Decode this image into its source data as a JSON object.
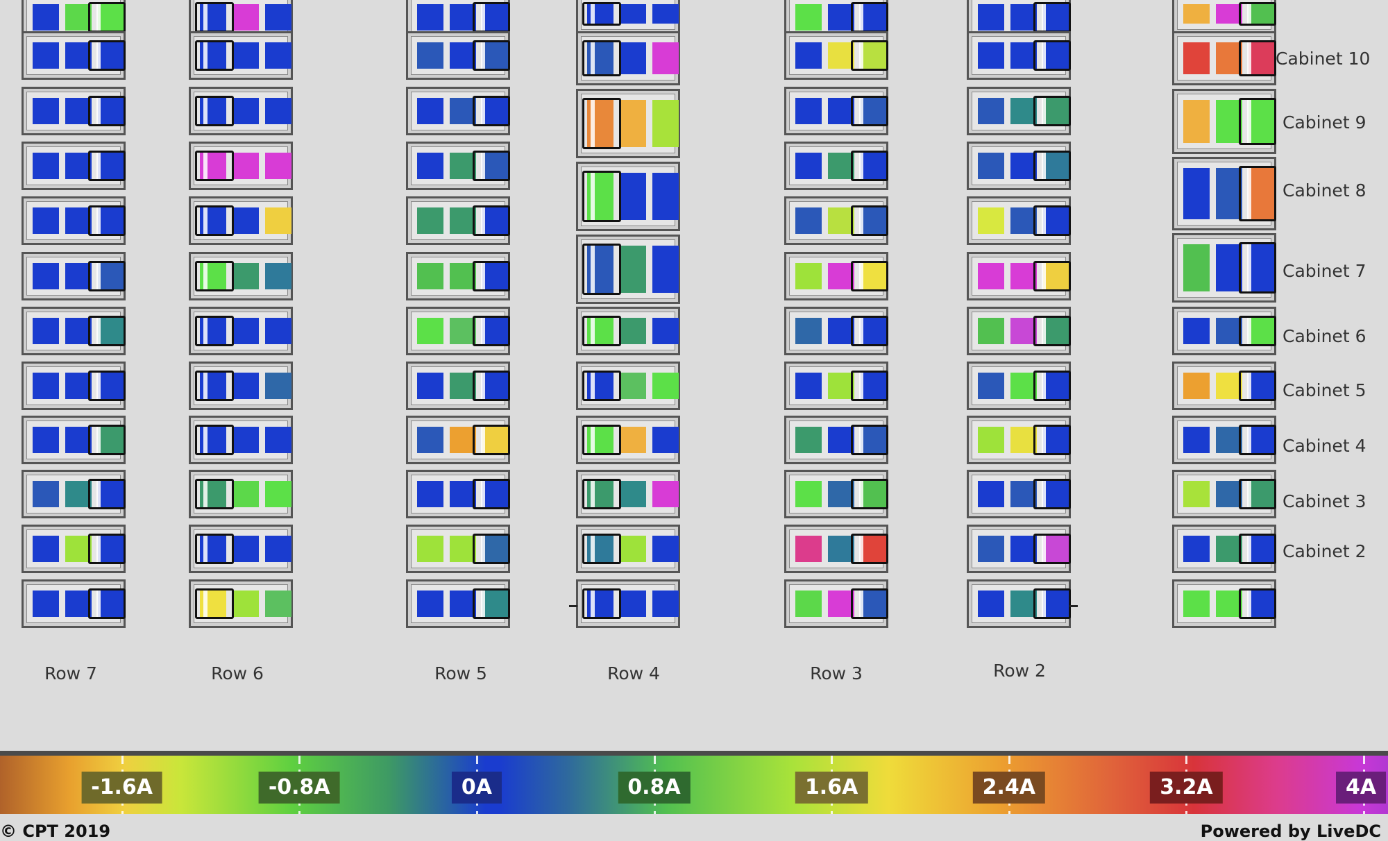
{
  "rows": [
    {
      "label": "Row 7",
      "cabinets": [
        [
          "#1a3ccf",
          "#5cd84a",
          "#5ce048"
        ],
        [
          "#1a3ccf",
          "#1a3ccf",
          "#1a3ccf"
        ],
        [
          "#1a3ccf",
          "#1a3ccf",
          "#1a3ccf"
        ],
        [
          "#1a3ccf",
          "#1a3ccf",
          "#1a3ccf"
        ],
        [
          "#1a3ccf",
          "#1a3ccf",
          "#1a3ccf"
        ],
        [
          "#1a3ccf",
          "#1a3ccf",
          "#2b58b8"
        ],
        [
          "#1a3ccf",
          "#1a3ccf",
          "#2f8a8a"
        ],
        [
          "#1a3ccf",
          "#1a3ccf",
          "#1a3ccf"
        ],
        [
          "#1a3ccf",
          "#1a3ccf",
          "#3c9a6c"
        ],
        [
          "#2b58b8",
          "#2f8a8a",
          "#1a3ccf"
        ],
        [
          "#1a3ccf",
          "#9ee23a",
          "#1a3ccf"
        ],
        [
          "#1a3ccf",
          "#1a3ccf",
          "#1a3ccf"
        ]
      ]
    },
    {
      "label": "Row 6",
      "cabinets": [
        [
          "#1a3ccf",
          "#d83cd6",
          "#1a3ccf"
        ],
        [
          "#1a3ccf",
          "#1a3ccf",
          "#1a3ccf"
        ],
        [
          "#1a3ccf",
          "#1a3ccf",
          "#1a3ccf"
        ],
        [
          "#d83cd6",
          "#d83cd6",
          "#d83cd6"
        ],
        [
          "#1a3ccf",
          "#1a3ccf",
          "#efcf40"
        ],
        [
          "#5ce048",
          "#3c9a6c",
          "#2f7a9a"
        ],
        [
          "#1a3ccf",
          "#1a3ccf",
          "#1a3ccf"
        ],
        [
          "#1a3ccf",
          "#1a3ccf",
          "#2f68a8"
        ],
        [
          "#1a3ccf",
          "#1a3ccf",
          "#1a3ccf"
        ],
        [
          "#3c9a6c",
          "#5cd84a",
          "#5ce048"
        ],
        [
          "#1a3ccf",
          "#1a3ccf",
          "#1a3ccf"
        ],
        [
          "#efe040",
          "#9ee23a",
          "#5cc060"
        ]
      ]
    },
    {
      "label": "Row 5",
      "cabinets": [
        [
          "#1a3ccf",
          "#1a3ccf",
          "#1a3ccf"
        ],
        [
          "#2b58b8",
          "#1a3ccf",
          "#2b58b8"
        ],
        [
          "#1a3ccf",
          "#2b58b8",
          "#1a3ccf"
        ],
        [
          "#1a3ccf",
          "#3c9a6c",
          "#2b58b8"
        ],
        [
          "#3c9a6c",
          "#3c9a6c",
          "#1a3ccf"
        ],
        [
          "#52c050",
          "#52c050",
          "#1a3ccf"
        ],
        [
          "#5ce048",
          "#5cc060",
          "#1a3ccf"
        ],
        [
          "#1a3ccf",
          "#3c9a6c",
          "#1a3ccf"
        ],
        [
          "#2b58b8",
          "#eca030",
          "#efcf40"
        ],
        [
          "#1a3ccf",
          "#1a3ccf",
          "#1a3ccf"
        ],
        [
          "#9ee23a",
          "#9ee23a",
          "#2f68a8"
        ],
        [
          "#1a3ccf",
          "#1a3ccf",
          "#2f8a8a"
        ]
      ]
    },
    {
      "label": "Row 4",
      "cabinets": [
        [
          "#1a3ccf",
          "#1a3ccf",
          "#1a3ccf"
        ],
        [
          "#2b58b8",
          "#1a3ccf",
          "#d83cd6"
        ],
        [
          "#e8883a",
          "#efb040",
          "#a8e23a"
        ],
        [
          "#5ce048",
          "#1a3ccf",
          "#1a3ccf"
        ],
        [
          "#2b58b8",
          "#3c9a6c",
          "#1a3ccf"
        ],
        [
          "#5ce048",
          "#3c9a6c",
          "#1a3ccf"
        ],
        [
          "#1a3ccf",
          "#5cc060",
          "#5ce048"
        ],
        [
          "#5ce048",
          "#efb040",
          "#1a3ccf"
        ],
        [
          "#3c9a6c",
          "#2f8a8a",
          "#d83cd6"
        ],
        [
          "#2f7a9a",
          "#9ee23a",
          "#1a3ccf"
        ],
        [
          "#1a3ccf",
          "#1a3ccf",
          "#1a3ccf"
        ]
      ]
    },
    {
      "label": "Row 3",
      "cabinets": [
        [
          "#5ce048",
          "#1a3ccf",
          "#1a3ccf"
        ],
        [
          "#1a3ccf",
          "#e8e040",
          "#b8e040"
        ],
        [
          "#1a3ccf",
          "#1a3ccf",
          "#2b58b8"
        ],
        [
          "#1a3ccf",
          "#3c9a6c",
          "#1a3ccf"
        ],
        [
          "#2b58b8",
          "#b8e040",
          "#2b58b8"
        ],
        [
          "#9ee23a",
          "#d83cd6",
          "#efe040"
        ],
        [
          "#2f68a8",
          "#1a3ccf",
          "#1a3ccf"
        ],
        [
          "#1a3ccf",
          "#9ee23a",
          "#1a3ccf"
        ],
        [
          "#3c9a6c",
          "#1a3ccf",
          "#2b58b8"
        ],
        [
          "#5ce048",
          "#2f68a8",
          "#52c050"
        ],
        [
          "#dc3c8c",
          "#2f7a9a",
          "#e0443a"
        ],
        [
          "#5cd84a",
          "#d83cd6",
          "#2b58b8"
        ]
      ]
    },
    {
      "label": "Row 2",
      "cabinets": [
        [
          "#1a3ccf",
          "#1a3ccf",
          "#1a3ccf"
        ],
        [
          "#1a3ccf",
          "#1a3ccf",
          "#1a3ccf"
        ],
        [
          "#2b58b8",
          "#2f8a8a",
          "#3c9a6c"
        ],
        [
          "#2b58b8",
          "#1a3ccf",
          "#2f7a9a"
        ],
        [
          "#d8e840",
          "#2b58b8",
          "#1a3ccf"
        ],
        [
          "#d83cd6",
          "#d83cd6",
          "#efcf40"
        ],
        [
          "#52c050",
          "#c848d6",
          "#3c9a6c"
        ],
        [
          "#2b58b8",
          "#5ce048",
          "#1a3ccf"
        ],
        [
          "#9ee23a",
          "#e8e040",
          "#1a3ccf"
        ],
        [
          "#1a3ccf",
          "#2b58b8",
          "#1a3ccf"
        ],
        [
          "#2b58b8",
          "#1a3ccf",
          "#c848d6"
        ],
        [
          "#1a3ccf",
          "#2f8a8a",
          "#1a3ccf"
        ]
      ]
    },
    {
      "label": "",
      "cabinets": [
        [
          "#efb040",
          "#d83cd6",
          "#52c050"
        ],
        [
          "#e0443a",
          "#e8783a",
          "#dc3c5a"
        ],
        [
          "#efb040",
          "#5ce048",
          "#5ce048"
        ],
        [
          "#1a3ccf",
          "#2b58b8",
          "#e8783a"
        ],
        [
          "#52c050",
          "#1a3ccf",
          "#1a3ccf"
        ],
        [
          "#1a3ccf",
          "#2b58b8",
          "#5ce048"
        ],
        [
          "#eca030",
          "#efe040",
          "#1a3ccf"
        ],
        [
          "#1a3ccf",
          "#2f68a8",
          "#1a3ccf"
        ],
        [
          "#a8e23a",
          "#2f68a8",
          "#3c9a6c"
        ],
        [
          "#1a3ccf",
          "#3c9a6c",
          "#1a3ccf"
        ],
        [
          "#5ce048",
          "#5ce048",
          "#1a3ccf"
        ]
      ]
    }
  ],
  "cabinet_labels": [
    "Cabinet 10",
    "Cabinet 9",
    "Cabinet 8",
    "Cabinet 7",
    "Cabinet 6",
    "Cabinet 5",
    "Cabinet 4",
    "Cabinet 3",
    "Cabinet 2"
  ],
  "scale": {
    "labels": [
      "-1.6A",
      "-0.8A",
      "0A",
      "0.8A",
      "1.6A",
      "2.4A",
      "3.2A",
      "4A"
    ],
    "values": [
      -1.6,
      -0.8,
      0,
      0.8,
      1.6,
      2.4,
      3.2,
      4.0
    ],
    "label_colors": [
      "#6f6a2a",
      "#3f6a2a",
      "#1a2c8a",
      "#2f6a2f",
      "#7a7030",
      "#7a4a20",
      "#7a1e1e",
      "#6a1e7a"
    ]
  },
  "footer": {
    "left": "© CPT 2019",
    "right": "Powered by LiveDC"
  }
}
